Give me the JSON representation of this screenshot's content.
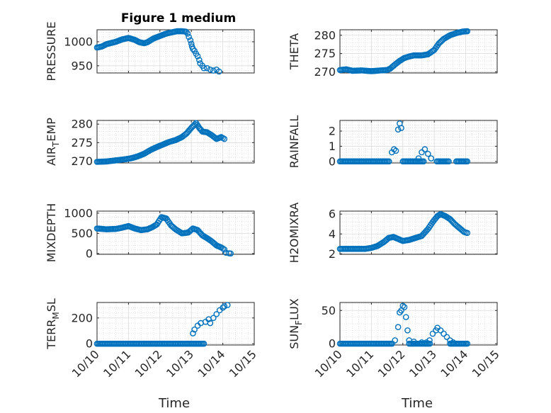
{
  "chart_data": {
    "title": "Figure 1 medium",
    "xlabel": "Time",
    "x_ticks": [
      "10/10",
      "10/11",
      "10/12",
      "10/13",
      "10/14",
      "10/15"
    ],
    "xlim": [
      0,
      5
    ],
    "marker": "circle-open",
    "color": "#0072BD",
    "panels": [
      {
        "id": "pressure",
        "type": "scatter",
        "ylabel": "PRESSURE",
        "ylim": [
          935,
          1025
        ],
        "yticks": [
          950,
          1000
        ],
        "segments": [
          [
            0,
            988
          ],
          [
            0.15,
            990
          ],
          [
            0.3,
            995
          ],
          [
            0.6,
            1000
          ],
          [
            0.8,
            1005
          ],
          [
            1.0,
            1008
          ],
          [
            1.2,
            1004
          ],
          [
            1.35,
            999
          ],
          [
            1.5,
            997
          ],
          [
            1.6,
            999
          ],
          [
            1.8,
            1007
          ],
          [
            2.0,
            1012
          ],
          [
            2.2,
            1017
          ],
          [
            2.4,
            1020
          ],
          [
            2.55,
            1022
          ],
          [
            2.7,
            1022
          ],
          [
            2.83,
            1021
          ]
        ],
        "scatter_points": [
          [
            2.88,
            1017
          ],
          [
            2.92,
            1010
          ],
          [
            2.97,
            1003
          ],
          [
            3.0,
            996
          ],
          [
            3.02,
            990
          ],
          [
            3.05,
            985
          ],
          [
            3.1,
            981
          ],
          [
            3.15,
            975
          ],
          [
            3.2,
            970
          ],
          [
            3.25,
            962
          ],
          [
            3.28,
            955
          ],
          [
            3.35,
            950
          ],
          [
            3.4,
            945
          ],
          [
            3.5,
            945
          ],
          [
            3.6,
            942
          ],
          [
            3.7,
            940
          ],
          [
            3.8,
            942
          ],
          [
            3.88,
            938
          ]
        ]
      },
      {
        "id": "theta",
        "type": "scatter",
        "ylabel": "THETA",
        "ylim": [
          269.7,
          281.5
        ],
        "yticks": [
          270,
          275,
          280
        ],
        "segments": [
          [
            0,
            270.5
          ],
          [
            0.2,
            270.7
          ],
          [
            0.4,
            270.3
          ],
          [
            0.7,
            270.4
          ],
          [
            1.0,
            270.2
          ],
          [
            1.3,
            270.4
          ],
          [
            1.5,
            270.5
          ],
          [
            1.6,
            270.9
          ],
          [
            1.75,
            272.0
          ],
          [
            1.9,
            273.0
          ],
          [
            2.05,
            273.8
          ],
          [
            2.2,
            274.2
          ],
          [
            2.35,
            274.5
          ],
          [
            2.6,
            274.5
          ],
          [
            2.8,
            274.8
          ],
          [
            3.0,
            276.0
          ],
          [
            3.15,
            277.8
          ],
          [
            3.3,
            279.0
          ],
          [
            3.5,
            280.0
          ],
          [
            3.7,
            280.6
          ],
          [
            3.9,
            281.0
          ],
          [
            4.05,
            281.1
          ]
        ],
        "scatter_points": []
      },
      {
        "id": "air_temp",
        "type": "scatter",
        "ylabel": "AIR",
        "ylabel_sub": "T",
        "ylabel_post": "EMP",
        "ylim": [
          269.5,
          281
        ],
        "yticks": [
          270,
          275,
          280
        ],
        "segments": [
          [
            0,
            269.8
          ],
          [
            0.3,
            269.9
          ],
          [
            0.6,
            270.2
          ],
          [
            0.9,
            270.5
          ],
          [
            1.1,
            270.8
          ],
          [
            1.3,
            271.3
          ],
          [
            1.5,
            272.0
          ],
          [
            1.7,
            273.0
          ],
          [
            1.9,
            273.8
          ],
          [
            2.1,
            274.5
          ],
          [
            2.3,
            275.2
          ],
          [
            2.5,
            275.7
          ],
          [
            2.7,
            276.5
          ],
          [
            2.85,
            277.5
          ],
          [
            3.0,
            279.0
          ],
          [
            3.15,
            280.3
          ],
          [
            3.25,
            279.0
          ],
          [
            3.35,
            278.0
          ],
          [
            3.5,
            277.8
          ],
          [
            3.65,
            277.0
          ],
          [
            3.8,
            276.0
          ],
          [
            3.95,
            276.5
          ],
          [
            4.05,
            276.0
          ]
        ],
        "scatter_points": []
      },
      {
        "id": "rainfall",
        "type": "scatter",
        "ylabel": "RAINFALL",
        "ylim": [
          -0.1,
          2.7
        ],
        "yticks": [
          0,
          1,
          2
        ],
        "segments": [
          [
            0,
            0
          ],
          [
            1.6,
            0
          ],
          [
            2.0,
            0
          ],
          [
            2.7,
            0
          ],
          [
            3.08,
            0
          ],
          [
            3.5,
            0
          ],
          [
            3.7,
            0
          ],
          [
            4.05,
            0
          ]
        ],
        "segment_breaks": [
          1,
          3,
          5
        ],
        "scatter_points": [
          [
            1.65,
            0.6
          ],
          [
            1.72,
            0.8
          ],
          [
            1.78,
            0.7
          ],
          [
            1.85,
            2.1
          ],
          [
            1.9,
            2.5
          ],
          [
            1.95,
            2.2
          ],
          [
            2.5,
            0.2
          ],
          [
            2.6,
            0.6
          ],
          [
            2.7,
            0.8
          ],
          [
            2.8,
            0.5
          ],
          [
            2.9,
            0.2
          ]
        ]
      },
      {
        "id": "mixdepth",
        "type": "scatter",
        "ylabel": "MIXDEPTH",
        "ylim": [
          -20,
          1050
        ],
        "yticks": [
          0,
          500,
          1000
        ],
        "segments": [
          [
            0,
            620
          ],
          [
            0.3,
            600
          ],
          [
            0.6,
            610
          ],
          [
            0.8,
            640
          ],
          [
            1.0,
            680
          ],
          [
            1.2,
            620
          ],
          [
            1.4,
            580
          ],
          [
            1.6,
            600
          ],
          [
            1.75,
            650
          ],
          [
            1.9,
            720
          ],
          [
            2.05,
            900
          ],
          [
            2.2,
            870
          ],
          [
            2.35,
            700
          ],
          [
            2.5,
            600
          ],
          [
            2.7,
            500
          ],
          [
            2.9,
            520
          ],
          [
            3.05,
            620
          ],
          [
            3.2,
            580
          ],
          [
            3.35,
            450
          ],
          [
            3.5,
            380
          ],
          [
            3.65,
            300
          ],
          [
            3.8,
            200
          ],
          [
            3.95,
            150
          ],
          [
            4.05,
            100
          ]
        ],
        "scatter_points": [
          [
            4.1,
            20
          ],
          [
            4.2,
            5
          ],
          [
            4.25,
            0
          ]
        ]
      },
      {
        "id": "h2omixra",
        "type": "scatter",
        "ylabel": "H2OMIXRA",
        "ylim": [
          1.95,
          6.3
        ],
        "yticks": [
          2,
          4,
          6
        ],
        "segments": [
          [
            0,
            2.5
          ],
          [
            0.4,
            2.5
          ],
          [
            0.8,
            2.5
          ],
          [
            1.0,
            2.6
          ],
          [
            1.2,
            2.8
          ],
          [
            1.4,
            3.2
          ],
          [
            1.55,
            3.6
          ],
          [
            1.7,
            3.7
          ],
          [
            1.85,
            3.5
          ],
          [
            2.0,
            3.3
          ],
          [
            2.2,
            3.4
          ],
          [
            2.4,
            3.6
          ],
          [
            2.6,
            3.8
          ],
          [
            2.8,
            4.5
          ],
          [
            2.95,
            5.2
          ],
          [
            3.1,
            5.8
          ],
          [
            3.2,
            6.0
          ],
          [
            3.35,
            5.8
          ],
          [
            3.5,
            5.5
          ],
          [
            3.65,
            5.0
          ],
          [
            3.8,
            4.6
          ],
          [
            3.95,
            4.2
          ],
          [
            4.05,
            4.1
          ]
        ],
        "scatter_points": []
      },
      {
        "id": "terr_msl",
        "type": "scatter",
        "ylabel": "TERR",
        "ylabel_sub": "M",
        "ylabel_post": "SL",
        "ylim": [
          -10,
          320
        ],
        "yticks": [
          0,
          200
        ],
        "segments": [
          [
            0,
            0
          ],
          [
            1.0,
            0
          ],
          [
            2.0,
            0
          ],
          [
            3.0,
            0
          ],
          [
            3.2,
            0
          ],
          [
            3.4,
            0
          ]
        ],
        "scatter_points": [
          [
            3.05,
            80
          ],
          [
            3.1,
            110
          ],
          [
            3.2,
            140
          ],
          [
            3.3,
            160
          ],
          [
            3.45,
            170
          ],
          [
            3.55,
            190
          ],
          [
            3.6,
            160
          ],
          [
            3.7,
            200
          ],
          [
            3.8,
            230
          ],
          [
            3.9,
            260
          ],
          [
            4.0,
            280
          ],
          [
            4.05,
            290
          ],
          [
            4.15,
            300
          ]
        ]
      },
      {
        "id": "sun_flux",
        "type": "scatter",
        "ylabel": "SUN",
        "ylabel_sub": "F",
        "ylabel_post": "LUX",
        "ylim": [
          -2,
          62
        ],
        "yticks": [
          0,
          50
        ],
        "segments": [
          [
            0,
            0
          ],
          [
            1.0,
            0
          ],
          [
            1.7,
            0
          ],
          [
            2.2,
            0
          ],
          [
            2.5,
            0
          ],
          [
            2.9,
            0
          ],
          [
            3.5,
            0
          ],
          [
            3.7,
            0
          ],
          [
            4.05,
            0
          ]
        ],
        "segment_breaks": [
          2,
          5
        ],
        "scatter_points": [
          [
            1.75,
            5
          ],
          [
            1.85,
            25
          ],
          [
            1.9,
            47
          ],
          [
            1.95,
            50
          ],
          [
            2.0,
            57
          ],
          [
            2.05,
            55
          ],
          [
            2.1,
            40
          ],
          [
            2.15,
            20
          ],
          [
            2.2,
            5
          ],
          [
            2.35,
            3
          ],
          [
            2.6,
            2
          ],
          [
            2.75,
            2
          ],
          [
            2.85,
            5
          ],
          [
            2.95,
            15
          ],
          [
            3.05,
            20
          ],
          [
            3.1,
            24
          ],
          [
            3.2,
            20
          ],
          [
            3.3,
            15
          ],
          [
            3.4,
            10
          ],
          [
            3.5,
            5
          ],
          [
            3.6,
            2
          ]
        ]
      }
    ]
  }
}
